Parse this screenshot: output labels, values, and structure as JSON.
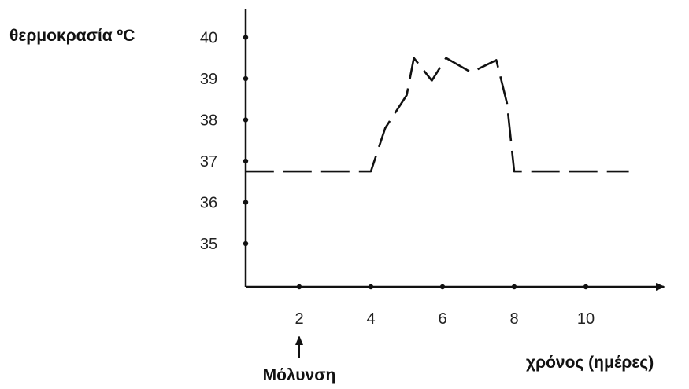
{
  "chart_data": {
    "type": "line",
    "ylabel": "θερμοκρασία ºC",
    "xlabel": "χρόνος (ημέρες)",
    "x_ticks": [
      2,
      4,
      6,
      8,
      10
    ],
    "y_ticks": [
      35,
      36,
      37,
      38,
      39,
      40
    ],
    "xlim": [
      0.5,
      11.8
    ],
    "ylim": [
      34,
      40.6
    ],
    "line_style": "dashed",
    "line_color": "#111111",
    "series": [
      {
        "x": [
          0.5,
          4.0,
          4.4,
          5.0,
          5.2,
          5.7,
          6.1,
          6.8,
          7.5,
          7.8,
          8.0,
          11.2
        ],
        "y": [
          36.75,
          36.75,
          37.8,
          38.6,
          39.5,
          38.95,
          39.5,
          39.15,
          39.45,
          38.4,
          36.75,
          36.75
        ]
      }
    ],
    "annotations": [
      {
        "text": "Μόλυνση",
        "x": 2,
        "arrow": "up"
      }
    ]
  }
}
